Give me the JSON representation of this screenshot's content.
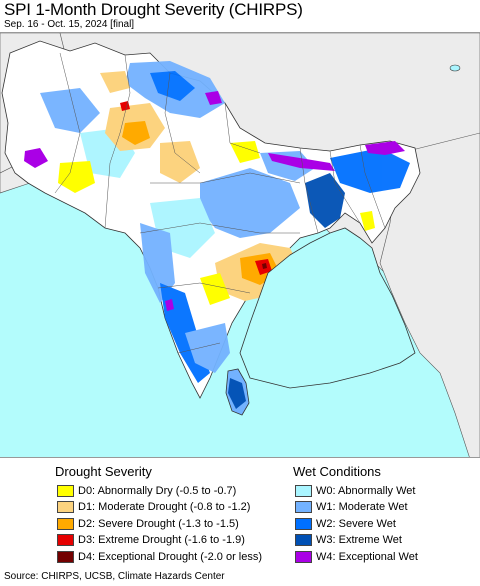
{
  "title": "SPI 1-Month Drought Severity (CHIRPS)",
  "subtitle": "Sep. 16 - Oct. 15, 2024 [final]",
  "colors": {
    "ocean": "#b3fcfc",
    "land_neutral": "#ffffff",
    "land_outside": "#ececec",
    "border": "#333333"
  },
  "legend": {
    "drought_heading": "Drought Severity",
    "wet_heading": "Wet Conditions",
    "drought": [
      {
        "code": "D0",
        "label": "D0: Abnormally Dry (-0.5 to -0.7)",
        "color": "#ffff00"
      },
      {
        "code": "D1",
        "label": "D1: Moderate Drought (-0.8 to -1.2)",
        "color": "#fcd37f"
      },
      {
        "code": "D2",
        "label": "D2: Severe Drought (-1.3 to -1.5)",
        "color": "#ffaa00"
      },
      {
        "code": "D3",
        "label": "D3: Extreme Drought (-1.6 to -1.9)",
        "color": "#e60000"
      },
      {
        "code": "D4",
        "label": "D4: Exceptional Drought (-2.0 or less)",
        "color": "#730000"
      }
    ],
    "wet": [
      {
        "code": "W0",
        "label": "W0: Abnormally Wet",
        "color": "#aaf5ff"
      },
      {
        "code": "W1",
        "label": "W1: Moderate Wet",
        "color": "#73b2ff"
      },
      {
        "code": "W2",
        "label": "W2: Severe Wet",
        "color": "#0070ff"
      },
      {
        "code": "W3",
        "label": "W3: Extreme Wet",
        "color": "#0050b4"
      },
      {
        "code": "W4",
        "label": "W4: Exceptional Wet",
        "color": "#aa00e6"
      }
    ]
  },
  "source": "Source: CHIRPS, UCSB, Climate Hazards Center"
}
